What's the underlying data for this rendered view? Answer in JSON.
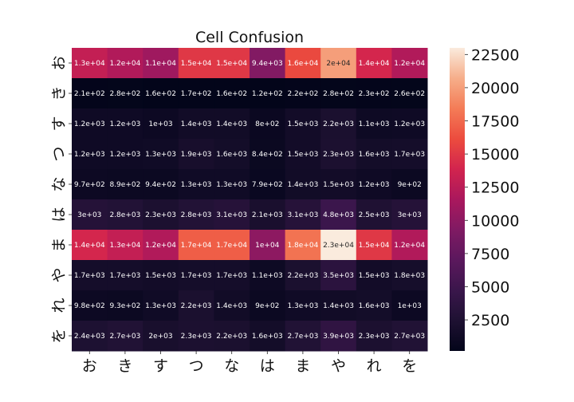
{
  "chart_data": {
    "type": "heatmap",
    "title": "Cell Confusion",
    "xlabel": "",
    "ylabel": "",
    "x_categories": [
      "お",
      "き",
      "す",
      "つ",
      "な",
      "は",
      "ま",
      "や",
      "れ",
      "を"
    ],
    "y_categories": [
      "お",
      "き",
      "す",
      "つ",
      "な",
      "は",
      "ま",
      "や",
      "れ",
      "を"
    ],
    "values": [
      [
        13000,
        12000,
        11000,
        15000,
        15000,
        9400,
        16000,
        20000,
        14000,
        12000
      ],
      [
        210,
        280,
        160,
        170,
        160,
        120,
        220,
        280,
        230,
        260
      ],
      [
        1200,
        1200,
        1000,
        1400,
        1400,
        800,
        1500,
        2200,
        1100,
        1200
      ],
      [
        1200,
        1200,
        1300,
        1900,
        1600,
        840,
        1500,
        2300,
        1600,
        1700
      ],
      [
        970,
        890,
        940,
        1300,
        1300,
        790,
        1400,
        1500,
        1200,
        900
      ],
      [
        3000,
        2800,
        2300,
        2800,
        3100,
        2100,
        3100,
        4800,
        2500,
        3000
      ],
      [
        14000,
        13000,
        12000,
        17000,
        17000,
        10000,
        18000,
        23000,
        15000,
        12000
      ],
      [
        1700,
        1700,
        1500,
        1700,
        1700,
        1100,
        2200,
        3500,
        1500,
        1800
      ],
      [
        980,
        930,
        1300,
        2200,
        1400,
        900,
        1300,
        1400,
        1600,
        1000
      ],
      [
        2400,
        2700,
        2000,
        2300,
        2200,
        1600,
        2700,
        3900,
        2300,
        2700
      ]
    ],
    "labels": [
      [
        "1.3e+04",
        "1.2e+04",
        "1.1e+04",
        "1.5e+04",
        "1.5e+04",
        "9.4e+03",
        "1.6e+04",
        "2e+04",
        "1.4e+04",
        "1.2e+04"
      ],
      [
        "2.1e+02",
        "2.8e+02",
        "1.6e+02",
        "1.7e+02",
        "1.6e+02",
        "1.2e+02",
        "2.2e+02",
        "2.8e+02",
        "2.3e+02",
        "2.6e+02"
      ],
      [
        "1.2e+03",
        "1.2e+03",
        "1e+03",
        "1.4e+03",
        "1.4e+03",
        "8e+02",
        "1.5e+03",
        "2.2e+03",
        "1.1e+03",
        "1.2e+03"
      ],
      [
        "1.2e+03",
        "1.2e+03",
        "1.3e+03",
        "1.9e+03",
        "1.6e+03",
        "8.4e+02",
        "1.5e+03",
        "2.3e+03",
        "1.6e+03",
        "1.7e+03"
      ],
      [
        "9.7e+02",
        "8.9e+02",
        "9.4e+02",
        "1.3e+03",
        "1.3e+03",
        "7.9e+02",
        "1.4e+03",
        "1.5e+03",
        "1.2e+03",
        "9e+02"
      ],
      [
        "3e+03",
        "2.8e+03",
        "2.3e+03",
        "2.8e+03",
        "3.1e+03",
        "2.1e+03",
        "3.1e+03",
        "4.8e+03",
        "2.5e+03",
        "3e+03"
      ],
      [
        "1.4e+04",
        "1.3e+04",
        "1.2e+04",
        "1.7e+04",
        "1.7e+04",
        "1e+04",
        "1.8e+04",
        "2.3e+04",
        "1.5e+04",
        "1.2e+04"
      ],
      [
        "1.7e+03",
        "1.7e+03",
        "1.5e+03",
        "1.7e+03",
        "1.7e+03",
        "1.1e+03",
        "2.2e+03",
        "3.5e+03",
        "1.5e+03",
        "1.8e+03"
      ],
      [
        "9.8e+02",
        "9.3e+02",
        "1.3e+03",
        "2.2e+03",
        "1.4e+03",
        "9e+02",
        "1.3e+03",
        "1.4e+03",
        "1.6e+03",
        "1e+03"
      ],
      [
        "2.4e+03",
        "2.7e+03",
        "2e+03",
        "2.3e+03",
        "2.2e+03",
        "1.6e+03",
        "2.7e+03",
        "3.9e+03",
        "2.3e+03",
        "2.7e+03"
      ]
    ],
    "colormap": "rocket",
    "color_range": [
      160,
      23000
    ],
    "colorbar_ticks": [
      2500,
      5000,
      7500,
      10000,
      12500,
      15000,
      17500,
      20000,
      22500
    ],
    "grid": false
  }
}
